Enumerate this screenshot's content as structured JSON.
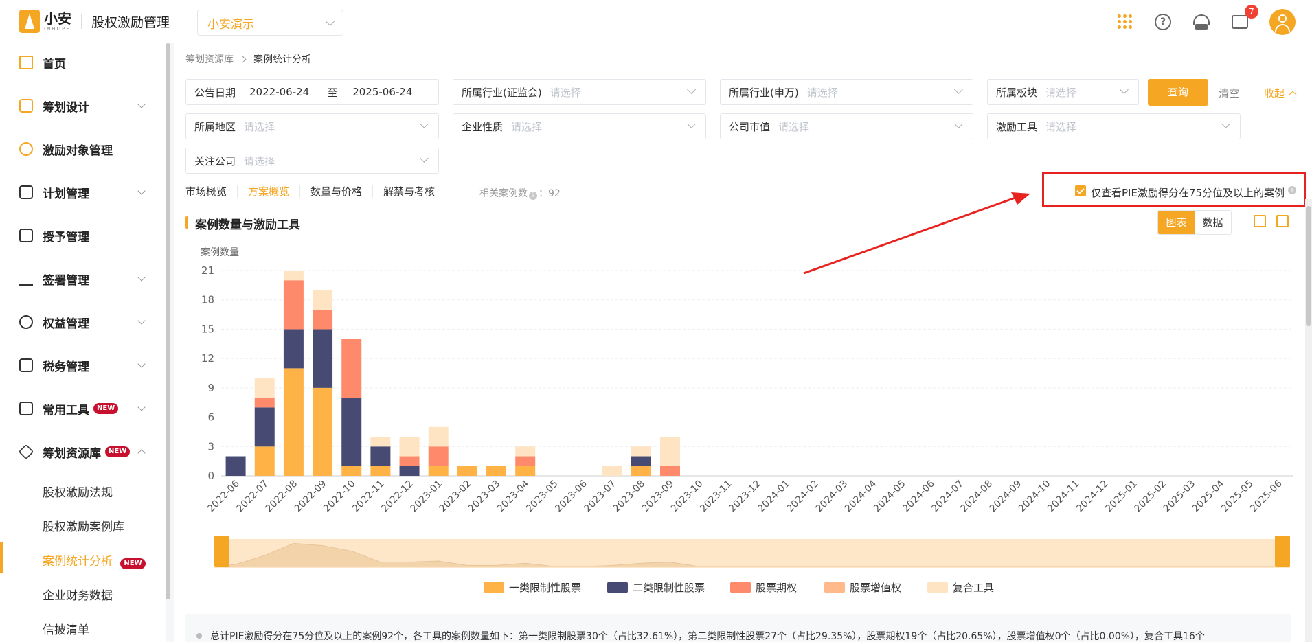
{
  "header": {
    "logo_name": "小安",
    "logo_sub": "INHOPE",
    "app_title": "股权激励管理",
    "tenant": "小安演示",
    "message_badge": "7"
  },
  "sidebar": {
    "items": [
      {
        "label": "首页"
      },
      {
        "label": "筹划设计"
      },
      {
        "label": "激励对象管理"
      },
      {
        "label": "计划管理"
      },
      {
        "label": "授予管理"
      },
      {
        "label": "签署管理"
      },
      {
        "label": "权益管理"
      },
      {
        "label": "税务管理"
      },
      {
        "label": "常用工具",
        "tag": "NEW"
      },
      {
        "label": "筹划资源库",
        "tag": "NEW"
      }
    ],
    "sub_items": [
      {
        "label": "股权激励法规"
      },
      {
        "label": "股权激励案例库"
      },
      {
        "label": "案例统计分析",
        "tag": "NEW"
      },
      {
        "label": "企业财务数据"
      },
      {
        "label": "信披清单"
      }
    ]
  },
  "breadcrumb": {
    "parent": "筹划资源库",
    "current": "案例统计分析"
  },
  "filters": {
    "date_label": "公告日期",
    "date_from": "2022-06-24",
    "date_sep": "至",
    "date_to": "2025-06-24",
    "industry_csrc": "所属行业(证监会)",
    "industry_sw": "所属行业(申万)",
    "board": "所属板块",
    "region": "所属地区",
    "nature": "企业性质",
    "market_cap": "公司市值",
    "tool": "激励工具",
    "follow": "关注公司",
    "placeholder": "请选择",
    "query": "查询",
    "clear": "清空",
    "fold": "收起"
  },
  "tabs": [
    "市场概览",
    "方案概览",
    "数量与价格",
    "解禁与考核"
  ],
  "case_count": {
    "label": "相关案例数",
    "value": "92"
  },
  "pie_filter": {
    "label": "仅查看PIE激励得分在75分位及以上的案例",
    "checked": true
  },
  "section": {
    "title": "案例数量与激励工具"
  },
  "view_toggle": {
    "chart": "图表",
    "data": "数据"
  },
  "colors": {
    "accent": "#f5a623",
    "series1": "#ffb347",
    "series2": "#474a73",
    "series3": "#ff8a6b",
    "series4": "#ffb98a",
    "series5": "#ffe4c4",
    "annotation": "#e8231f"
  },
  "chart_data": {
    "type": "bar",
    "stacked": true,
    "ylabel": "案例数量",
    "ylim": [
      0,
      21
    ],
    "yticks": [
      0,
      3,
      6,
      9,
      12,
      15,
      18,
      21
    ],
    "categories": [
      "2022-06",
      "2022-07",
      "2022-08",
      "2022-09",
      "2022-10",
      "2022-11",
      "2022-12",
      "2023-01",
      "2023-02",
      "2023-03",
      "2023-04",
      "2023-05",
      "2023-06",
      "2023-07",
      "2023-08",
      "2023-09",
      "2023-10",
      "2023-11",
      "2023-12",
      "2024-01",
      "2024-02",
      "2024-03",
      "2024-04",
      "2024-05",
      "2024-06",
      "2024-07",
      "2024-08",
      "2024-09",
      "2024-10",
      "2024-11",
      "2024-12",
      "2025-01",
      "2025-02",
      "2025-03",
      "2025-04",
      "2025-05",
      "2025-06"
    ],
    "series": [
      {
        "name": "一类限制性股票",
        "values": [
          0,
          3,
          11,
          9,
          1,
          1,
          0,
          1,
          1,
          1,
          1,
          0,
          0,
          0,
          1,
          0,
          0,
          0,
          0,
          0,
          0,
          0,
          0,
          0,
          0,
          0,
          0,
          0,
          0,
          0,
          0,
          0,
          0,
          0,
          0,
          0,
          0
        ]
      },
      {
        "name": "二类限制性股票",
        "values": [
          2,
          4,
          4,
          6,
          7,
          2,
          1,
          0,
          0,
          0,
          0,
          0,
          0,
          0,
          1,
          0,
          0,
          0,
          0,
          0,
          0,
          0,
          0,
          0,
          0,
          0,
          0,
          0,
          0,
          0,
          0,
          0,
          0,
          0,
          0,
          0,
          0
        ]
      },
      {
        "name": "股票期权",
        "values": [
          0,
          1,
          5,
          2,
          6,
          0,
          1,
          2,
          0,
          0,
          1,
          0,
          0,
          0,
          0,
          1,
          0,
          0,
          0,
          0,
          0,
          0,
          0,
          0,
          0,
          0,
          0,
          0,
          0,
          0,
          0,
          0,
          0,
          0,
          0,
          0,
          0
        ]
      },
      {
        "name": "股票增值权",
        "values": [
          0,
          0,
          0,
          0,
          0,
          0,
          0,
          0,
          0,
          0,
          0,
          0,
          0,
          0,
          0,
          0,
          0,
          0,
          0,
          0,
          0,
          0,
          0,
          0,
          0,
          0,
          0,
          0,
          0,
          0,
          0,
          0,
          0,
          0,
          0,
          0,
          0
        ]
      },
      {
        "name": "复合工具",
        "values": [
          0,
          2,
          1,
          2,
          0,
          1,
          2,
          2,
          0,
          0,
          1,
          0,
          0,
          1,
          1,
          3,
          0,
          0,
          0,
          0,
          0,
          0,
          0,
          0,
          0,
          0,
          0,
          0,
          0,
          0,
          0,
          0,
          0,
          0,
          0,
          0,
          0
        ]
      }
    ],
    "legend_position": "bottom",
    "grid": true
  },
  "summary": {
    "text": "总计PIE激励得分在75分位及以上的案例92个，各工具的案例数量如下：第一类限制股票30个（占比32.61%），第二类限制性股票27个（占比29.35%），股票期权19个（占比20.65%），股票增值权0个（占比0.00%），复合工具16个"
  }
}
